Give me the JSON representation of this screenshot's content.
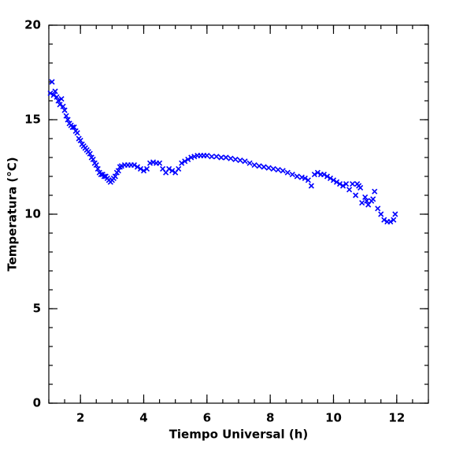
{
  "chart_data": {
    "type": "scatter",
    "xlabel": "Tiempo Universal (h)",
    "ylabel": "Temperatura (°C)",
    "xlim": [
      1,
      13
    ],
    "ylim": [
      0,
      20
    ],
    "xticks": [
      2,
      4,
      6,
      8,
      10,
      12
    ],
    "yticks": [
      0,
      5,
      10,
      15,
      20
    ],
    "color": "#0000ff",
    "x": [
      1.05,
      1.1,
      1.15,
      1.2,
      1.25,
      1.3,
      1.35,
      1.4,
      1.45,
      1.5,
      1.55,
      1.6,
      1.65,
      1.7,
      1.75,
      1.8,
      1.85,
      1.9,
      1.95,
      2.0,
      2.05,
      2.1,
      2.15,
      2.2,
      2.25,
      2.3,
      2.35,
      2.4,
      2.45,
      2.5,
      2.55,
      2.6,
      2.65,
      2.7,
      2.75,
      2.8,
      2.85,
      2.9,
      2.95,
      3.0,
      3.05,
      3.1,
      3.15,
      3.2,
      3.25,
      3.3,
      3.4,
      3.5,
      3.6,
      3.7,
      3.8,
      3.9,
      4.0,
      4.1,
      4.2,
      4.3,
      4.4,
      4.5,
      4.6,
      4.7,
      4.8,
      4.9,
      5.0,
      5.1,
      5.2,
      5.3,
      5.4,
      5.5,
      5.6,
      5.7,
      5.8,
      5.9,
      6.0,
      6.15,
      6.3,
      6.45,
      6.6,
      6.75,
      6.9,
      7.05,
      7.2,
      7.35,
      7.5,
      7.65,
      7.8,
      7.95,
      8.1,
      8.25,
      8.4,
      8.55,
      8.7,
      8.85,
      9.0,
      9.1,
      9.2,
      9.3,
      9.4,
      9.5,
      9.6,
      9.7,
      9.8,
      9.9,
      10.0,
      10.1,
      10.2,
      10.3,
      10.4,
      10.5,
      10.6,
      10.7,
      10.75,
      10.8,
      10.85,
      10.9,
      11.0,
      11.05,
      11.1,
      11.2,
      11.25,
      11.3,
      11.4,
      11.5,
      11.6,
      11.7,
      11.8,
      11.9,
      11.95
    ],
    "values": [
      16.4,
      17.0,
      16.3,
      16.5,
      16.2,
      16.0,
      15.8,
      16.1,
      15.7,
      15.5,
      15.2,
      15.0,
      14.8,
      14.7,
      14.6,
      14.6,
      14.4,
      14.3,
      14.0,
      13.9,
      13.7,
      13.6,
      13.5,
      13.4,
      13.3,
      13.2,
      13.0,
      12.9,
      12.7,
      12.6,
      12.4,
      12.2,
      12.1,
      12.1,
      12.0,
      12.0,
      11.9,
      11.8,
      11.7,
      11.8,
      11.9,
      12.0,
      12.2,
      12.3,
      12.5,
      12.55,
      12.6,
      12.6,
      12.6,
      12.6,
      12.5,
      12.4,
      12.3,
      12.4,
      12.7,
      12.75,
      12.7,
      12.7,
      12.4,
      12.2,
      12.4,
      12.3,
      12.2,
      12.4,
      12.7,
      12.8,
      12.9,
      13.0,
      13.05,
      13.1,
      13.1,
      13.1,
      13.1,
      13.05,
      13.05,
      13.0,
      13.0,
      12.95,
      12.9,
      12.85,
      12.8,
      12.7,
      12.6,
      12.55,
      12.5,
      12.45,
      12.4,
      12.35,
      12.3,
      12.2,
      12.1,
      12.0,
      11.95,
      11.9,
      11.8,
      11.5,
      12.1,
      12.2,
      12.1,
      12.1,
      12.0,
      11.9,
      11.8,
      11.7,
      11.6,
      11.5,
      11.6,
      11.3,
      11.6,
      11.0,
      11.6,
      11.5,
      11.4,
      10.6,
      10.9,
      10.7,
      10.5,
      10.7,
      10.8,
      11.2,
      10.3,
      10.0,
      9.7,
      9.6,
      9.6,
      9.7,
      10.0
    ]
  }
}
